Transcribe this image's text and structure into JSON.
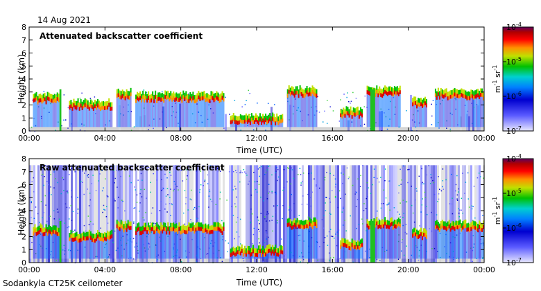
{
  "date_label": "14 Aug 2021",
  "footer_label": "Sodankyla CT25K ceilometer",
  "colors": {
    "background": "#ffffff",
    "axis": "#000000",
    "clutter": "#d4d4d4"
  },
  "chart_data": [
    {
      "type": "heatmap",
      "title": "Attenuated backscatter coefficient",
      "xlabel": "Time (UTC)",
      "ylabel": "Height (km)",
      "x_ticks": [
        "00:00",
        "04:00",
        "08:00",
        "12:00",
        "16:00",
        "20:00",
        "00:00"
      ],
      "x_range_hours": [
        0,
        24
      ],
      "y_ticks": [
        "0",
        "1",
        "2",
        "3",
        "4",
        "5",
        "6",
        "7",
        "8"
      ],
      "ylim": [
        0,
        8
      ],
      "colorbar": {
        "unit_base": "m",
        "unit_exp": "-1",
        "unit_base2": " sr",
        "unit_exp2": "-1",
        "ticks": [
          {
            "base": "10",
            "exp": "-4",
            "value": 0.0001
          },
          {
            "base": "10",
            "exp": "-5",
            "value": 1e-05
          },
          {
            "base": "10",
            "exp": "-6",
            "value": 1e-06
          },
          {
            "base": "10",
            "exp": "-7",
            "value": 1e-07
          }
        ]
      },
      "cloud_layers": [
        {
          "t0": 0.2,
          "t1": 1.6,
          "h": 2.3
        },
        {
          "t0": 2.1,
          "t1": 4.4,
          "h": 1.8
        },
        {
          "t0": 4.6,
          "t1": 5.4,
          "h": 2.6
        },
        {
          "t0": 5.6,
          "t1": 10.3,
          "h": 2.4
        },
        {
          "t0": 10.6,
          "t1": 13.4,
          "h": 0.7
        },
        {
          "t0": 13.6,
          "t1": 15.2,
          "h": 2.8
        },
        {
          "t0": 16.4,
          "t1": 17.6,
          "h": 1.2
        },
        {
          "t0": 17.8,
          "t1": 19.6,
          "h": 2.8
        },
        {
          "t0": 20.2,
          "t1": 21.0,
          "h": 2.0
        },
        {
          "t0": 21.4,
          "t1": 24.0,
          "h": 2.6
        }
      ],
      "precipitation_bands": [
        {
          "t0": 1.6,
          "t1": 1.7
        },
        {
          "t0": 18.0,
          "t1": 18.25
        }
      ]
    },
    {
      "type": "heatmap",
      "title": "Raw attenuated backscatter coefficient",
      "xlabel": "Time (UTC)",
      "ylabel": "Height (km)",
      "x_ticks": [
        "00:00",
        "04:00",
        "08:00",
        "12:00",
        "16:00",
        "20:00",
        "00:00"
      ],
      "x_range_hours": [
        0,
        24
      ],
      "y_ticks": [
        "0",
        "1",
        "2",
        "3",
        "4",
        "5",
        "6",
        "7",
        "8"
      ],
      "ylim": [
        0,
        8
      ],
      "colorbar": {
        "unit_base": "m",
        "unit_exp": "-1",
        "unit_base2": " sr",
        "unit_exp2": "-1",
        "ticks": [
          {
            "base": "10",
            "exp": "-4",
            "value": 0.0001
          },
          {
            "base": "10",
            "exp": "-5",
            "value": 1e-05
          },
          {
            "base": "10",
            "exp": "-6",
            "value": 1e-06
          },
          {
            "base": "10",
            "exp": "-7",
            "value": 1e-07
          }
        ]
      },
      "cloud_layers": [
        {
          "t0": 0.2,
          "t1": 1.6,
          "h": 2.3
        },
        {
          "t0": 2.1,
          "t1": 4.4,
          "h": 1.8
        },
        {
          "t0": 4.6,
          "t1": 5.4,
          "h": 2.6
        },
        {
          "t0": 5.6,
          "t1": 10.3,
          "h": 2.4
        },
        {
          "t0": 10.6,
          "t1": 13.4,
          "h": 0.7
        },
        {
          "t0": 13.6,
          "t1": 15.2,
          "h": 2.8
        },
        {
          "t0": 16.4,
          "t1": 17.6,
          "h": 1.2
        },
        {
          "t0": 17.8,
          "t1": 19.6,
          "h": 2.8
        },
        {
          "t0": 20.2,
          "t1": 21.0,
          "h": 2.0
        },
        {
          "t0": 21.4,
          "t1": 24.0,
          "h": 2.6
        }
      ],
      "precipitation_bands": [
        {
          "t0": 1.6,
          "t1": 1.7
        },
        {
          "t0": 18.0,
          "t1": 18.25
        }
      ]
    }
  ]
}
